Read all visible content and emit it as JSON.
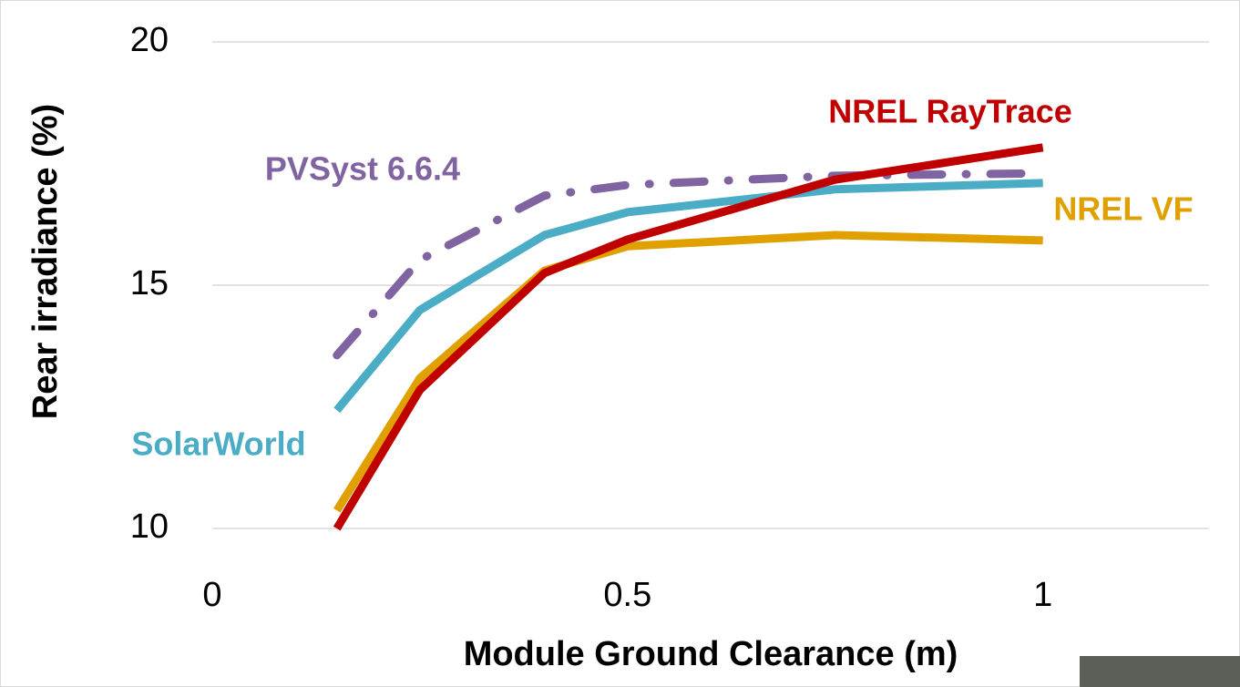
{
  "chart_data": {
    "type": "line",
    "x_label": "Module Ground Clearance (m)",
    "y_label": "Rear irradiance (%)",
    "x": [
      0.15,
      0.25,
      0.4,
      0.5,
      0.75,
      1.0
    ],
    "series": [
      {
        "name": "NREL VF",
        "color": "#e0a100",
        "style": "solid",
        "values": [
          10.37,
          13.09,
          15.3,
          15.8,
          16.03,
          15.92
        ]
      },
      {
        "name": "SolarWorld",
        "color": "#4bacc6",
        "style": "solid",
        "values": [
          12.43,
          14.49,
          16.03,
          16.5,
          16.97,
          17.1
        ]
      },
      {
        "name": "PVSyst 6.6.4",
        "color": "#8064a2",
        "style": "dashdot",
        "values": [
          13.56,
          15.52,
          16.84,
          17.06,
          17.25,
          17.3
        ]
      },
      {
        "name": "NREL RayTrace",
        "color": "#c00000",
        "style": "solid",
        "values": [
          10.0,
          12.85,
          15.25,
          15.94,
          17.17,
          17.83
        ]
      }
    ],
    "xlim": [
      0,
      1.2
    ],
    "xticks": [
      0,
      0.5,
      1
    ],
    "ylim": [
      10,
      20
    ],
    "yticks": [
      10,
      15,
      20
    ],
    "grid": true
  }
}
